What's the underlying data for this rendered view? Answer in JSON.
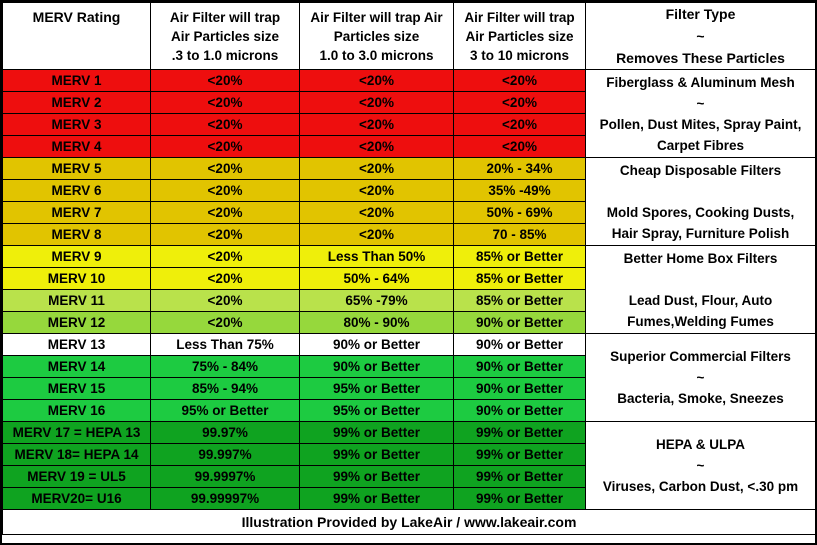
{
  "colors": {
    "red": "#EE0E0E",
    "gold": "#E1C400",
    "yellow": "#EFEF0A",
    "yellowGreenLight": "#B9E24B",
    "yellowGreen": "#96D83C",
    "white": "#FFFFFF",
    "green": "#1DCB41",
    "darkGreen": "#0FA320",
    "border": "#000000",
    "text": "#000000"
  },
  "chart_data": {
    "type": "table",
    "title": "MERV Rating Air Filter Efficiency Chart",
    "columns": [
      "MERV Rating",
      "Air  Filter will trap\nAir Particles size\n.3 to 1.0 microns",
      "Air  Filter will trap Air\nParticles size\n1.0 to 3.0 microns",
      "Air  Filter will trap\nAir Particles size\n3  to 10 microns",
      "Filter Type\n~\nRemoves These Particles"
    ],
    "rows": [
      {
        "rating": "MERV 1",
        "v1": "<20%",
        "v2": "<20%",
        "v3": "<20%",
        "color": "red"
      },
      {
        "rating": "MERV 2",
        "v1": "<20%",
        "v2": "<20%",
        "v3": "<20%",
        "color": "red"
      },
      {
        "rating": "MERV 3",
        "v1": "<20%",
        "v2": "<20%",
        "v3": "<20%",
        "color": "red"
      },
      {
        "rating": "MERV 4",
        "v1": "<20%",
        "v2": "<20%",
        "v3": "<20%",
        "color": "red"
      },
      {
        "rating": "MERV 5",
        "v1": "<20%",
        "v2": "<20%",
        "v3": "20% - 34%",
        "color": "gold"
      },
      {
        "rating": "MERV 6",
        "v1": "<20%",
        "v2": "<20%",
        "v3": "35% -49%",
        "color": "gold"
      },
      {
        "rating": "MERV 7",
        "v1": "<20%",
        "v2": "<20%",
        "v3": "50% - 69%",
        "color": "gold"
      },
      {
        "rating": "MERV 8",
        "v1": "<20%",
        "v2": "<20%",
        "v3": "70 - 85%",
        "color": "gold"
      },
      {
        "rating": "MERV 9",
        "v1": "<20%",
        "v2": "Less Than 50%",
        "v3": "85% or Better",
        "color": "yellow"
      },
      {
        "rating": "MERV 10",
        "v1": "<20%",
        "v2": "50% - 64%",
        "v3": "85% or Better",
        "color": "yellow"
      },
      {
        "rating": "MERV 11",
        "v1": "<20%",
        "v2": "65% -79%",
        "v3": "85% or Better",
        "color": "yellowGreenLight"
      },
      {
        "rating": "MERV 12",
        "v1": "<20%",
        "v2": "80% - 90%",
        "v3": "90% or Better",
        "color": "yellowGreen"
      },
      {
        "rating": "MERV 13",
        "v1": "Less Than 75%",
        "v2": "90% or Better",
        "v3": "90% or Better",
        "color": "white"
      },
      {
        "rating": "MERV 14",
        "v1": "75% - 84%",
        "v2": "90% or Better",
        "v3": "90% or Better",
        "color": "green"
      },
      {
        "rating": "MERV 15",
        "v1": "85% - 94%",
        "v2": "95% or Better",
        "v3": "90% or Better",
        "color": "green"
      },
      {
        "rating": "MERV 16",
        "v1": "95% or Better",
        "v2": "95% or Better",
        "v3": "90% or Better",
        "color": "green"
      },
      {
        "rating": "MERV 17 = HEPA 13",
        "v1": "99.97%",
        "v2": "99% or Better",
        "v3": "99% or Better",
        "color": "darkGreen"
      },
      {
        "rating": "MERV 18= HEPA 14",
        "v1": "99.997%",
        "v2": "99% or Better",
        "v3": "99% or Better",
        "color": "darkGreen"
      },
      {
        "rating": "MERV 19 = UL5",
        "v1": "99.9997%",
        "v2": "99% or Better",
        "v3": "99% or Better",
        "color": "darkGreen"
      },
      {
        "rating": "MERV20= U16",
        "v1": "99.99997%",
        "v2": "99% or Better",
        "v3": "99% or Better",
        "color": "darkGreen"
      }
    ],
    "filter_groups": [
      "Fiberglass & Aluminum Mesh\n~\nPollen, Dust Mites, Spray Paint,\nCarpet Fibres",
      "Cheap Disposable Filters\n\nMold Spores, Cooking Dusts,\nHair Spray, Furniture Polish",
      "Better Home Box Filters\n\nLead Dust, Flour, Auto\nFumes,Welding Fumes",
      "Superior Commercial Filters\n~\nBacteria, Smoke, Sneezes",
      "HEPA &  ULPA\n~\nViruses,  Carbon Dust, <.30 pm"
    ],
    "footer": "Illustration Provided by LakeAir / www.lakeair.com"
  }
}
